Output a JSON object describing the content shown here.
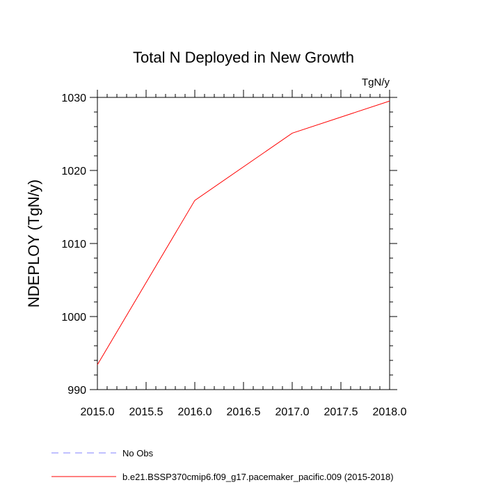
{
  "chart_data": {
    "type": "line",
    "title": "Total N Deployed in New Growth",
    "units_label": "TgN/y",
    "ylabel": "NDEPLOY  (TgN/y)",
    "xlabel": "",
    "xlim": [
      2015.0,
      2018.0
    ],
    "ylim": [
      990,
      1030
    ],
    "xticks": [
      "2015.0",
      "2015.5",
      "2016.0",
      "2016.5",
      "2017.0",
      "2017.5",
      "2018.0"
    ],
    "yticks": [
      "990",
      "1000",
      "1010",
      "1020",
      "1030"
    ],
    "grid": false,
    "legend_position": "bottom",
    "series": [
      {
        "name": "b.e21.BSSP370cmip6.f09_g17.pacemaker_pacific.009 (2015-2018)",
        "color": "#ff0000",
        "dash": "solid",
        "x": [
          2015.0,
          2016.0,
          2017.0,
          2018.0
        ],
        "y": [
          993.4,
          1015.9,
          1025.1,
          1029.5
        ]
      }
    ],
    "legend": [
      {
        "label": "No Obs",
        "color": "#8080ff",
        "dash": "dashed"
      },
      {
        "label": "b.e21.BSSP370cmip6.f09_g17.pacemaker_pacific.009 (2015-2018)",
        "color": "#ff0000",
        "dash": "solid"
      }
    ]
  }
}
